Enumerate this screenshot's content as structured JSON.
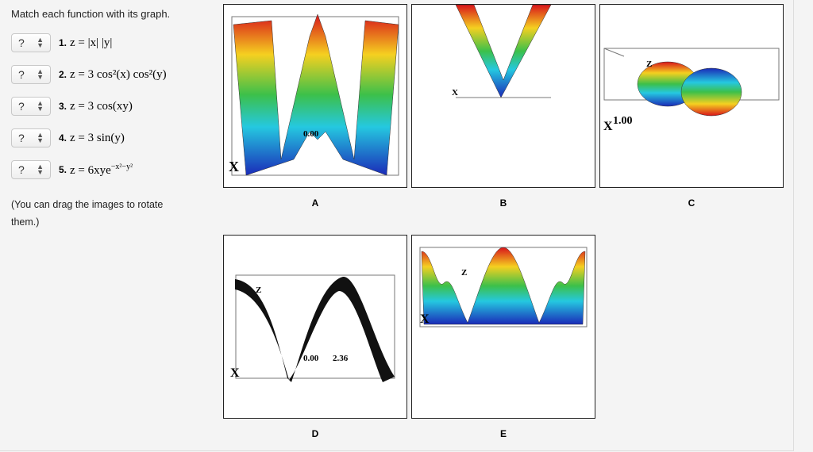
{
  "prompt": "Match each function with its graph.",
  "items": [
    {
      "choice": "?",
      "number": "1.",
      "formula": "z = |x| |y|"
    },
    {
      "choice": "?",
      "number": "2.",
      "formula": "z = 3 cos²(x) cos²(y)"
    },
    {
      "choice": "?",
      "number": "3.",
      "formula": "z = 3 cos(xy)"
    },
    {
      "choice": "?",
      "number": "4.",
      "formula": "z = 3 sin(y)"
    },
    {
      "choice": "?",
      "number": "5.",
      "formula": "z = 6xye",
      "exponent": "−x²−y²"
    }
  ],
  "note": "(You can drag the images to rotate them.)",
  "graphs": [
    {
      "label": "A",
      "texts": [
        "0.00",
        "X"
      ]
    },
    {
      "label": "B",
      "texts": [
        "X"
      ]
    },
    {
      "label": "C",
      "texts": [
        "Z",
        "X",
        "1.00"
      ]
    },
    {
      "label": "D",
      "texts": [
        "Z",
        "X",
        "0.00",
        "2.36"
      ]
    },
    {
      "label": "E",
      "texts": [
        "Z",
        "X"
      ]
    }
  ]
}
